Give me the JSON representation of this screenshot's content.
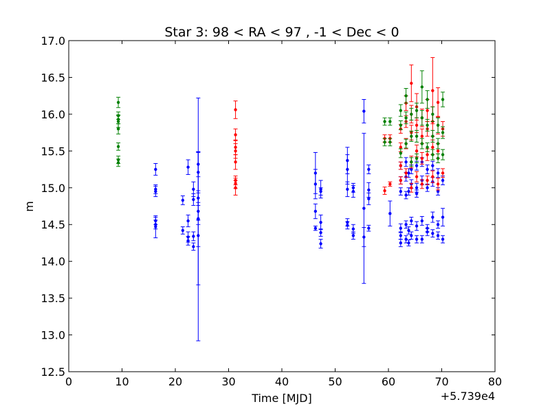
{
  "chart_data": {
    "type": "scatter",
    "title": "Star 3: 98 < RA < 97 , -1 < Dec < 0",
    "xlabel": "Time [MJD]",
    "ylabel": "m",
    "x_offset_label": "+5.739e4",
    "xlim": [
      0,
      80
    ],
    "ylim": [
      12.5,
      17.0
    ],
    "x_ticks": [
      "0",
      "10",
      "20",
      "30",
      "40",
      "50",
      "60",
      "70",
      "80"
    ],
    "y_ticks": [
      "12.5",
      "13.0",
      "13.5",
      "14.0",
      "14.5",
      "15.0",
      "15.5",
      "16.0",
      "16.5",
      "17.0"
    ],
    "grid": false,
    "series": [
      {
        "color": "#0000ff",
        "points": [
          [
            16.3,
            15.25,
            0.08
          ],
          [
            16.3,
            14.98,
            0.06
          ],
          [
            16.3,
            14.95,
            0.07
          ],
          [
            16.3,
            14.55,
            0.05
          ],
          [
            16.3,
            14.5,
            0.06
          ],
          [
            16.3,
            14.47,
            0.15
          ],
          [
            21.4,
            14.83,
            0.06
          ],
          [
            21.4,
            14.42,
            0.05
          ],
          [
            22.4,
            15.28,
            0.1
          ],
          [
            22.4,
            14.55,
            0.08
          ],
          [
            22.4,
            14.33,
            0.07
          ],
          [
            22.4,
            14.28,
            0.06
          ],
          [
            23.4,
            14.98,
            0.1
          ],
          [
            23.4,
            14.84,
            0.08
          ],
          [
            23.4,
            14.34,
            0.06
          ],
          [
            23.4,
            14.2,
            0.05
          ],
          [
            24.3,
            15.32,
            0.17
          ],
          [
            24.3,
            15.21,
            0.28
          ],
          [
            24.3,
            14.86,
            0.1
          ],
          [
            24.3,
            14.68,
            0.12
          ],
          [
            24.3,
            14.58,
            0.9
          ],
          [
            24.3,
            14.35,
            0.15
          ],
          [
            24.3,
            14.57,
            1.65
          ],
          [
            46.3,
            15.2,
            0.28
          ],
          [
            46.3,
            15.05,
            0.2
          ],
          [
            46.3,
            14.68,
            0.1
          ],
          [
            46.3,
            14.45,
            0.03
          ],
          [
            47.3,
            14.98,
            0.12
          ],
          [
            47.3,
            14.95,
            0.05
          ],
          [
            47.3,
            14.53,
            0.1
          ],
          [
            47.3,
            14.39,
            0.05
          ],
          [
            47.3,
            14.24,
            0.06
          ],
          [
            52.3,
            15.37,
            0.18
          ],
          [
            52.3,
            15.25,
            0.2
          ],
          [
            52.3,
            14.98,
            0.1
          ],
          [
            52.3,
            14.53,
            0.05
          ],
          [
            52.3,
            14.49,
            0.05
          ],
          [
            53.4,
            15.0,
            0.06
          ],
          [
            53.4,
            14.95,
            0.08
          ],
          [
            53.4,
            14.44,
            0.06
          ],
          [
            53.4,
            14.35,
            0.05
          ],
          [
            55.4,
            16.04,
            0.16
          ],
          [
            55.4,
            14.72,
            1.02
          ],
          [
            55.4,
            14.33,
            0.13
          ],
          [
            56.3,
            15.25,
            0.06
          ],
          [
            56.3,
            14.97,
            0.1
          ],
          [
            56.3,
            14.85,
            0.08
          ],
          [
            56.3,
            14.45,
            0.04
          ],
          [
            60.3,
            14.65,
            0.17
          ],
          [
            62.3,
            15.3,
            0.05
          ],
          [
            62.3,
            15.1,
            0.05
          ],
          [
            62.3,
            14.95,
            0.05
          ],
          [
            62.3,
            14.45,
            0.06
          ],
          [
            62.3,
            14.35,
            0.05
          ],
          [
            62.3,
            14.25,
            0.05
          ],
          [
            63.3,
            15.35,
            0.06
          ],
          [
            63.3,
            15.15,
            0.06
          ],
          [
            63.3,
            14.9,
            0.05
          ],
          [
            63.3,
            14.5,
            0.05
          ],
          [
            63.3,
            14.3,
            0.05
          ],
          [
            63.8,
            15.2,
            0.06
          ],
          [
            63.8,
            14.95,
            0.05
          ],
          [
            63.8,
            14.42,
            0.05
          ],
          [
            63.8,
            14.25,
            0.04
          ],
          [
            64.3,
            15.25,
            0.06
          ],
          [
            64.3,
            15.05,
            0.06
          ],
          [
            64.3,
            14.55,
            0.05
          ],
          [
            64.3,
            14.35,
            0.05
          ],
          [
            65.3,
            15.3,
            0.06
          ],
          [
            65.3,
            15.0,
            0.06
          ],
          [
            65.3,
            14.92,
            0.05
          ],
          [
            65.3,
            14.48,
            0.06
          ],
          [
            65.3,
            14.3,
            0.05
          ],
          [
            66.3,
            15.35,
            0.06
          ],
          [
            66.3,
            15.1,
            0.06
          ],
          [
            66.3,
            14.55,
            0.06
          ],
          [
            66.3,
            14.3,
            0.05
          ],
          [
            67.3,
            15.25,
            0.06
          ],
          [
            67.3,
            15.0,
            0.05
          ],
          [
            67.3,
            14.45,
            0.05
          ],
          [
            67.3,
            14.4,
            0.05
          ],
          [
            68.3,
            15.3,
            0.06
          ],
          [
            68.3,
            15.08,
            0.06
          ],
          [
            68.3,
            14.6,
            0.07
          ],
          [
            68.3,
            14.38,
            0.05
          ],
          [
            69.3,
            15.2,
            0.06
          ],
          [
            69.3,
            14.95,
            0.05
          ],
          [
            69.3,
            14.5,
            0.05
          ],
          [
            69.3,
            14.35,
            0.05
          ],
          [
            70.2,
            15.1,
            0.06
          ],
          [
            70.2,
            14.6,
            0.12
          ],
          [
            70.2,
            14.3,
            0.05
          ]
        ]
      },
      {
        "color": "#ff0000",
        "points": [
          [
            31.3,
            16.06,
            0.12
          ],
          [
            31.3,
            15.72,
            0.08
          ],
          [
            31.3,
            15.55,
            0.1
          ],
          [
            31.3,
            15.5,
            0.1
          ],
          [
            31.3,
            15.35,
            0.1
          ],
          [
            31.3,
            15.1,
            0.06
          ],
          [
            31.3,
            15.06,
            0.07
          ],
          [
            31.3,
            15.0,
            0.1
          ],
          [
            59.3,
            15.67,
            0.05
          ],
          [
            59.3,
            14.96,
            0.05
          ],
          [
            60.3,
            15.67,
            0.05
          ],
          [
            60.3,
            15.05,
            0.03
          ],
          [
            62.3,
            15.8,
            0.06
          ],
          [
            62.3,
            15.55,
            0.06
          ],
          [
            62.3,
            15.3,
            0.05
          ],
          [
            62.3,
            15.1,
            0.05
          ],
          [
            63.3,
            16.15,
            0.1
          ],
          [
            63.3,
            15.9,
            0.08
          ],
          [
            63.3,
            15.6,
            0.07
          ],
          [
            63.3,
            15.2,
            0.06
          ],
          [
            64.3,
            16.42,
            0.25
          ],
          [
            64.3,
            16.0,
            0.12
          ],
          [
            64.3,
            15.75,
            0.1
          ],
          [
            64.3,
            15.35,
            0.08
          ],
          [
            64.3,
            15.0,
            0.06
          ],
          [
            65.3,
            16.1,
            0.18
          ],
          [
            65.3,
            15.85,
            0.1
          ],
          [
            65.3,
            15.5,
            0.08
          ],
          [
            65.3,
            15.15,
            0.07
          ],
          [
            66.3,
            15.95,
            0.12
          ],
          [
            66.3,
            15.7,
            0.1
          ],
          [
            66.3,
            15.4,
            0.08
          ],
          [
            66.3,
            15.05,
            0.06
          ],
          [
            67.3,
            16.05,
            0.15
          ],
          [
            67.3,
            15.8,
            0.1
          ],
          [
            67.3,
            15.45,
            0.08
          ],
          [
            67.3,
            15.1,
            0.06
          ],
          [
            68.3,
            16.32,
            0.45
          ],
          [
            68.3,
            15.9,
            0.2
          ],
          [
            68.3,
            15.55,
            0.1
          ],
          [
            68.3,
            15.15,
            0.08
          ],
          [
            69.3,
            16.16,
            0.2
          ],
          [
            69.3,
            15.85,
            0.12
          ],
          [
            69.3,
            15.5,
            0.1
          ],
          [
            69.3,
            15.05,
            0.08
          ],
          [
            70.2,
            15.8,
            0.1
          ],
          [
            70.2,
            15.2,
            0.06
          ]
        ]
      },
      {
        "color": "#008000",
        "points": [
          [
            9.3,
            16.16,
            0.07
          ],
          [
            9.3,
            15.98,
            0.05
          ],
          [
            9.3,
            15.93,
            0.06
          ],
          [
            9.3,
            15.9,
            0.08
          ],
          [
            9.3,
            15.8,
            0.07
          ],
          [
            9.3,
            15.56,
            0.05
          ],
          [
            9.3,
            15.38,
            0.05
          ],
          [
            9.3,
            15.34,
            0.05
          ],
          [
            59.3,
            15.9,
            0.05
          ],
          [
            59.3,
            15.62,
            0.05
          ],
          [
            60.3,
            15.9,
            0.05
          ],
          [
            60.3,
            15.62,
            0.05
          ],
          [
            62.3,
            16.05,
            0.08
          ],
          [
            62.3,
            15.85,
            0.06
          ],
          [
            62.3,
            15.47,
            0.06
          ],
          [
            63.3,
            16.25,
            0.1
          ],
          [
            63.3,
            15.95,
            0.08
          ],
          [
            63.3,
            15.6,
            0.06
          ],
          [
            64.3,
            16.0,
            0.08
          ],
          [
            64.3,
            15.7,
            0.07
          ],
          [
            64.3,
            15.35,
            0.06
          ],
          [
            65.3,
            16.05,
            0.1
          ],
          [
            65.3,
            15.7,
            0.08
          ],
          [
            65.3,
            15.4,
            0.06
          ],
          [
            66.3,
            16.37,
            0.22
          ],
          [
            66.3,
            15.95,
            0.1
          ],
          [
            66.3,
            15.6,
            0.07
          ],
          [
            67.3,
            16.2,
            0.12
          ],
          [
            67.3,
            15.85,
            0.08
          ],
          [
            67.3,
            15.55,
            0.06
          ],
          [
            68.3,
            16.0,
            0.1
          ],
          [
            68.3,
            15.7,
            0.08
          ],
          [
            68.3,
            15.45,
            0.07
          ],
          [
            69.3,
            15.85,
            0.1
          ],
          [
            69.3,
            15.6,
            0.07
          ],
          [
            69.3,
            15.4,
            0.06
          ],
          [
            70.2,
            16.2,
            0.1
          ],
          [
            70.2,
            15.75,
            0.08
          ],
          [
            70.2,
            15.45,
            0.07
          ]
        ]
      }
    ]
  }
}
